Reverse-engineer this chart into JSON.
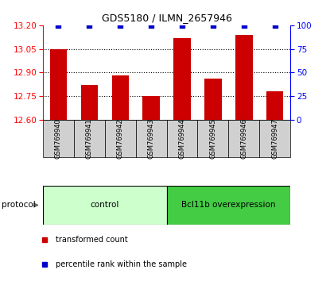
{
  "title": "GDS5180 / ILMN_2657946",
  "samples": [
    "GSM769940",
    "GSM769941",
    "GSM769942",
    "GSM769943",
    "GSM769944",
    "GSM769945",
    "GSM769946",
    "GSM769947"
  ],
  "transformed_counts": [
    13.05,
    12.82,
    12.88,
    12.75,
    13.12,
    12.86,
    13.14,
    12.78
  ],
  "percentile_ranks": [
    100,
    100,
    100,
    100,
    100,
    100,
    100,
    100
  ],
  "ylim_left": [
    12.6,
    13.2
  ],
  "ylim_right": [
    0,
    100
  ],
  "yticks_left": [
    12.6,
    12.75,
    12.9,
    13.05,
    13.2
  ],
  "yticks_right": [
    0,
    25,
    50,
    75,
    100
  ],
  "bar_color": "#cc0000",
  "dot_color": "#0000cc",
  "grid_ticks": [
    12.75,
    12.9,
    13.05
  ],
  "groups": [
    {
      "label": "control",
      "indices": [
        0,
        1,
        2,
        3
      ],
      "color": "#ccffcc"
    },
    {
      "label": "Bcl11b overexpression",
      "indices": [
        4,
        5,
        6,
        7
      ],
      "color": "#44cc44"
    }
  ],
  "protocol_label": "protocol",
  "legend_items": [
    {
      "color": "#cc0000",
      "marker": "s",
      "label": "transformed count"
    },
    {
      "color": "#0000cc",
      "marker": "s",
      "label": "percentile rank within the sample"
    }
  ],
  "bar_width": 0.55,
  "sample_box_color": "#d0d0d0",
  "fig_width": 4.15,
  "fig_height": 3.54
}
